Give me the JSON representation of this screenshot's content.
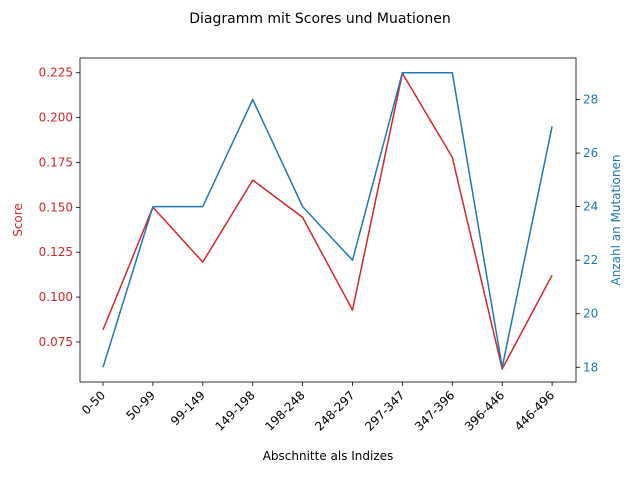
{
  "chart_data": {
    "type": "line",
    "title": "Diagramm mit Scores und Muationen",
    "xlabel": "Abschnitte als Indizes",
    "categories": [
      "0-50",
      "50-99",
      "99-149",
      "149-198",
      "198-248",
      "248-297",
      "297-347",
      "347-396",
      "396-446",
      "446-496"
    ],
    "grid": false,
    "left_axis": {
      "label": "Score",
      "color": "#d62728",
      "ylim": [
        0.0527,
        0.2332
      ],
      "ticks": [
        "0.075",
        "0.100",
        "0.125",
        "0.150",
        "0.175",
        "0.200",
        "0.225"
      ]
    },
    "right_axis": {
      "label": "Anzahl an Mutationen",
      "color": "#1f77b4",
      "ylim": [
        17.45,
        29.55
      ],
      "ticks": [
        "18",
        "20",
        "22",
        "24",
        "26",
        "28"
      ]
    },
    "series": [
      {
        "axis": "left",
        "color": "#d62728",
        "values": [
          0.0817,
          0.15,
          0.1195,
          0.1652,
          0.1444,
          0.0928,
          0.2247,
          0.1778,
          0.06,
          0.1122
        ]
      },
      {
        "axis": "right",
        "color": "#1f77b4",
        "values": [
          18,
          24,
          24,
          28,
          24,
          22,
          29,
          29,
          18,
          27
        ]
      }
    ]
  }
}
